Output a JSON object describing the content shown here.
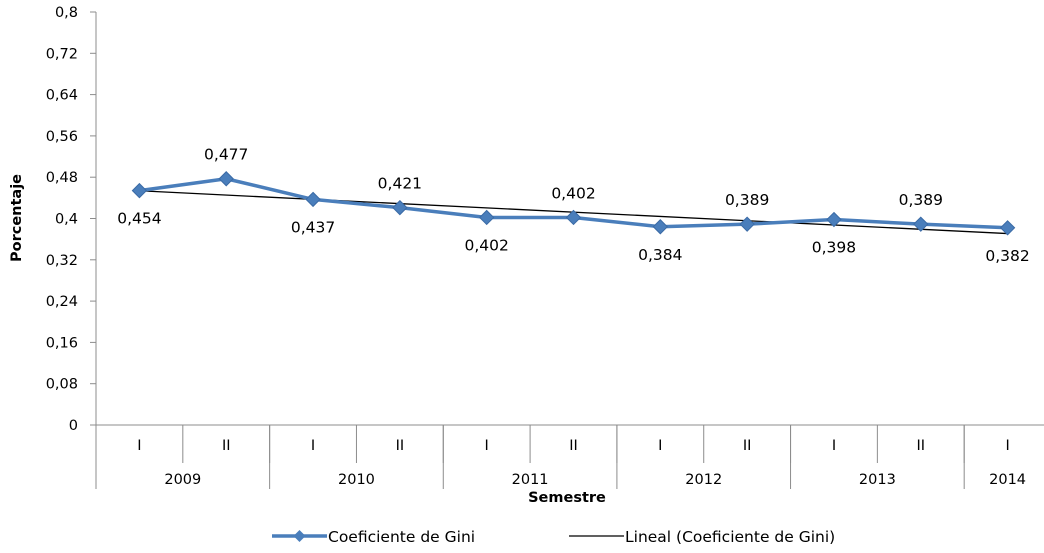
{
  "chart_data": {
    "type": "line",
    "ylabel": "Porcentaje",
    "xlabel": "Semestre",
    "ylim": [
      0,
      0.8
    ],
    "yticks": [
      "0",
      "0,08",
      "0,16",
      "0,24",
      "0,32",
      "0,4",
      "0,48",
      "0,56",
      "0,64",
      "0,72",
      "0,8"
    ],
    "categories": [
      "I",
      "II",
      "I",
      "II",
      "I",
      "II",
      "I",
      "II",
      "I",
      "II",
      "I"
    ],
    "years": [
      {
        "label": "2009",
        "span": 2
      },
      {
        "label": "2010",
        "span": 2
      },
      {
        "label": "2011",
        "span": 2
      },
      {
        "label": "2012",
        "span": 2
      },
      {
        "label": "2013",
        "span": 2
      },
      {
        "label": "2014",
        "span": 1
      }
    ],
    "series": [
      {
        "name": "Coeficiente de Gini",
        "values": [
          0.454,
          0.477,
          0.437,
          0.421,
          0.402,
          0.402,
          0.384,
          0.389,
          0.398,
          0.389,
          0.382
        ],
        "labels": [
          "0,454",
          "0,477",
          "0,437",
          "0,421",
          "0,402",
          "0,402",
          "0,384",
          "0,389",
          "0,398",
          "0,389",
          "0,382"
        ],
        "label_positions": [
          "below",
          "above",
          "below",
          "above",
          "below",
          "above",
          "below",
          "above",
          "below",
          "above",
          "below"
        ],
        "color": "#4a7ebb"
      }
    ],
    "trendline": {
      "name": "Lineal (Coeficiente de Gini)",
      "type": "linear",
      "color": "#000000"
    },
    "grid": false,
    "legend": "bottom"
  }
}
